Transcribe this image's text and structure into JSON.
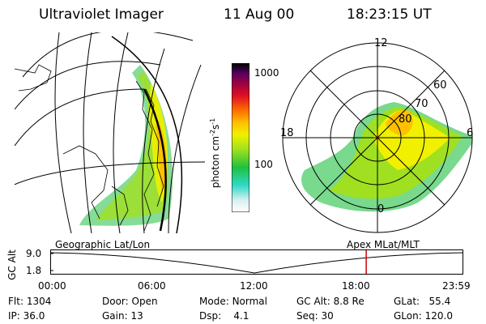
{
  "header": {
    "instrument": "Ultraviolet Imager",
    "date": "11 Aug 00",
    "time": "18:23:15 UT"
  },
  "colorbar": {
    "unit_label": "photon cm",
    "unit_exp1": "-2",
    "unit_mid": "s",
    "unit_exp2": "-1",
    "ticks": [
      "1000",
      "100"
    ],
    "scale": "log"
  },
  "polar": {
    "mlt_labels": [
      "12",
      "18",
      "6",
      "0"
    ],
    "lat_labels": [
      "60",
      "70",
      "80"
    ]
  },
  "projection_labels": {
    "left": "Geographic Lat/Lon",
    "right": "Apex MLat/MLT"
  },
  "altitude_plot": {
    "ylabel": "GC Alt",
    "yticks": [
      "9.0",
      "1.8"
    ],
    "xticks": [
      "00:00",
      "06:00",
      "12:00",
      "18:00",
      "23:59"
    ],
    "marker_time": "18:23",
    "marker_color": "#d00000"
  },
  "status": {
    "flt": {
      "label": "Flt:",
      "value": "1304"
    },
    "ip": {
      "label": "IP:",
      "value": "36.0"
    },
    "door": {
      "label": "Door:",
      "value": "Open"
    },
    "gain": {
      "label": "Gain:",
      "value": "13"
    },
    "mode": {
      "label": "Mode:",
      "value": "Normal"
    },
    "dsp": {
      "label": "Dsp:",
      "value": "4.1"
    },
    "gcalt": {
      "label": "GC Alt:",
      "value": "8.8 Re"
    },
    "seq": {
      "label": "Seq:",
      "value": "30"
    },
    "glat": {
      "label": "GLat:",
      "value": "55.4"
    },
    "glon": {
      "label": "GLon:",
      "value": "120.0"
    }
  },
  "colors": {
    "scale": [
      "#ffffff",
      "#d8f0f0",
      "#30d8c8",
      "#20c040",
      "#a0e020",
      "#f0f000",
      "#ffc000",
      "#ff7000",
      "#e01020",
      "#a00040",
      "#5a0060",
      "#000000"
    ]
  }
}
